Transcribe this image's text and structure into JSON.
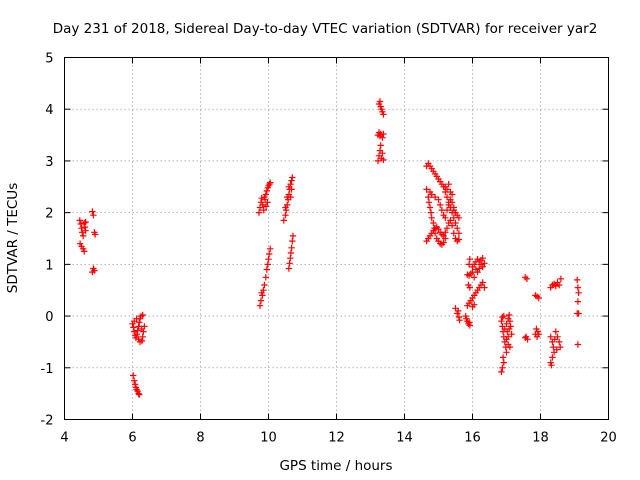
{
  "chart_data": {
    "type": "scatter",
    "title": "Day 231 of 2018, Sidereal Day-to-day VTEC variation (SDTVAR) for receiver yar2",
    "xlabel": "GPS time / hours",
    "ylabel": "SDTVAR / TECUs",
    "xlim": [
      4,
      20
    ],
    "ylim": [
      -2,
      5
    ],
    "xticks": [
      4,
      6,
      8,
      10,
      12,
      14,
      16,
      18,
      20
    ],
    "yticks": [
      -2,
      -1,
      0,
      1,
      2,
      3,
      4,
      5
    ],
    "grid": true,
    "marker": "+",
    "marker_color": "#ff0000",
    "series": [
      {
        "name": "yar2",
        "points": [
          [
            4.45,
            1.85
          ],
          [
            4.48,
            1.78
          ],
          [
            4.5,
            1.7
          ],
          [
            4.52,
            1.62
          ],
          [
            4.55,
            1.55
          ],
          [
            4.58,
            1.8
          ],
          [
            4.6,
            1.72
          ],
          [
            4.62,
            1.65
          ],
          [
            4.46,
            1.4
          ],
          [
            4.5,
            1.35
          ],
          [
            4.55,
            1.3
          ],
          [
            4.58,
            1.25
          ],
          [
            4.62,
            1.82
          ],
          [
            4.82,
            2.02
          ],
          [
            4.85,
            1.95
          ],
          [
            4.88,
            1.62
          ],
          [
            4.9,
            1.58
          ],
          [
            4.85,
            0.92
          ],
          [
            4.88,
            0.88
          ],
          [
            4.82,
            0.85
          ],
          [
            6.02,
            -1.15
          ],
          [
            6.05,
            -1.25
          ],
          [
            6.08,
            -1.32
          ],
          [
            6.1,
            -1.38
          ],
          [
            6.12,
            -1.42
          ],
          [
            6.15,
            -1.45
          ],
          [
            6.18,
            -1.5
          ],
          [
            6.2,
            -1.52
          ],
          [
            6.0,
            -0.15
          ],
          [
            6.03,
            -0.22
          ],
          [
            6.05,
            -0.3
          ],
          [
            6.08,
            -0.38
          ],
          [
            6.1,
            -0.42
          ],
          [
            6.13,
            -0.35
          ],
          [
            6.15,
            -0.28
          ],
          [
            6.18,
            -0.2
          ],
          [
            6.2,
            -0.12
          ],
          [
            6.22,
            -0.05
          ],
          [
            6.25,
            0.0
          ],
          [
            6.28,
            -0.48
          ],
          [
            6.3,
            -0.4
          ],
          [
            6.32,
            -0.3
          ],
          [
            6.35,
            -0.2
          ],
          [
            6.05,
            -0.1
          ],
          [
            6.12,
            -0.05
          ],
          [
            6.18,
            -0.45
          ],
          [
            6.22,
            -0.5
          ],
          [
            6.27,
            -0.25
          ],
          [
            6.3,
            0.02
          ],
          [
            9.75,
            0.2
          ],
          [
            9.78,
            0.3
          ],
          [
            9.82,
            0.4
          ],
          [
            9.85,
            0.5
          ],
          [
            9.88,
            0.6
          ],
          [
            9.92,
            0.75
          ],
          [
            9.95,
            0.9
          ],
          [
            9.98,
            1.0
          ],
          [
            10.0,
            1.1
          ],
          [
            10.02,
            1.2
          ],
          [
            10.05,
            1.3
          ],
          [
            9.8,
            0.45
          ],
          [
            9.72,
            2.0
          ],
          [
            9.75,
            2.1
          ],
          [
            9.78,
            2.2
          ],
          [
            9.8,
            2.28
          ],
          [
            9.83,
            2.15
          ],
          [
            9.86,
            2.05
          ],
          [
            9.9,
            2.25
          ],
          [
            9.92,
            2.35
          ],
          [
            9.95,
            2.42
          ],
          [
            9.98,
            2.48
          ],
          [
            10.0,
            2.52
          ],
          [
            10.03,
            2.55
          ],
          [
            10.05,
            2.58
          ],
          [
            9.88,
            2.3
          ],
          [
            9.93,
            2.12
          ],
          [
            9.97,
            2.2
          ],
          [
            10.45,
            1.85
          ],
          [
            10.5,
            1.95
          ],
          [
            10.52,
            2.05
          ],
          [
            10.55,
            2.15
          ],
          [
            10.58,
            2.25
          ],
          [
            10.6,
            2.35
          ],
          [
            10.62,
            2.45
          ],
          [
            10.65,
            2.55
          ],
          [
            10.68,
            2.62
          ],
          [
            10.7,
            2.68
          ],
          [
            10.5,
            2.1
          ],
          [
            10.55,
            2.3
          ],
          [
            10.6,
            2.5
          ],
          [
            10.65,
            2.3
          ],
          [
            10.68,
            2.45
          ],
          [
            10.6,
            0.92
          ],
          [
            10.62,
            1.02
          ],
          [
            10.64,
            1.12
          ],
          [
            10.66,
            1.22
          ],
          [
            10.68,
            1.32
          ],
          [
            10.7,
            1.45
          ],
          [
            10.72,
            1.55
          ],
          [
            13.22,
            3.0
          ],
          [
            13.25,
            3.1
          ],
          [
            13.28,
            3.2
          ],
          [
            13.3,
            3.3
          ],
          [
            13.32,
            3.05
          ],
          [
            13.35,
            3.15
          ],
          [
            13.38,
            3.02
          ],
          [
            13.22,
            3.5
          ],
          [
            13.25,
            3.55
          ],
          [
            13.28,
            3.48
          ],
          [
            13.3,
            3.52
          ],
          [
            13.35,
            3.45
          ],
          [
            13.38,
            3.52
          ],
          [
            13.25,
            4.1
          ],
          [
            13.28,
            4.15
          ],
          [
            13.3,
            4.05
          ],
          [
            13.32,
            4.0
          ],
          [
            13.35,
            3.95
          ],
          [
            13.38,
            3.9
          ],
          [
            14.65,
            2.9
          ],
          [
            14.7,
            2.95
          ],
          [
            14.75,
            2.9
          ],
          [
            14.8,
            2.85
          ],
          [
            14.85,
            2.8
          ],
          [
            14.9,
            2.75
          ],
          [
            14.95,
            2.7
          ],
          [
            15.0,
            2.65
          ],
          [
            15.05,
            2.6
          ],
          [
            15.1,
            2.55
          ],
          [
            15.15,
            2.5
          ],
          [
            15.2,
            2.4
          ],
          [
            15.25,
            2.3
          ],
          [
            15.3,
            2.2
          ],
          [
            15.35,
            2.1
          ],
          [
            15.4,
            2.0
          ],
          [
            15.45,
            1.9
          ],
          [
            15.5,
            1.8
          ],
          [
            15.55,
            1.7
          ],
          [
            15.6,
            1.6
          ],
          [
            14.65,
            2.45
          ],
          [
            14.7,
            2.3
          ],
          [
            14.72,
            2.2
          ],
          [
            14.75,
            2.1
          ],
          [
            14.78,
            2.0
          ],
          [
            14.8,
            1.9
          ],
          [
            14.85,
            1.8
          ],
          [
            14.88,
            1.7
          ],
          [
            14.9,
            1.6
          ],
          [
            14.95,
            1.5
          ],
          [
            15.0,
            1.45
          ],
          [
            15.05,
            1.4
          ],
          [
            15.1,
            1.38
          ],
          [
            15.15,
            1.42
          ],
          [
            15.2,
            1.5
          ],
          [
            14.65,
            1.45
          ],
          [
            14.7,
            1.5
          ],
          [
            14.75,
            1.55
          ],
          [
            14.8,
            1.6
          ],
          [
            14.85,
            1.65
          ],
          [
            14.9,
            1.7
          ],
          [
            14.95,
            1.72
          ],
          [
            15.0,
            1.68
          ],
          [
            15.05,
            1.62
          ],
          [
            15.1,
            1.58
          ],
          [
            15.15,
            1.55
          ],
          [
            15.2,
            1.62
          ],
          [
            15.25,
            1.7
          ],
          [
            15.3,
            1.8
          ],
          [
            15.35,
            1.85
          ],
          [
            15.4,
            1.75
          ],
          [
            15.45,
            1.6
          ],
          [
            15.5,
            1.5
          ],
          [
            15.55,
            1.45
          ],
          [
            15.6,
            1.48
          ],
          [
            14.75,
            2.4
          ],
          [
            14.8,
            2.35
          ],
          [
            14.9,
            2.3
          ],
          [
            15.0,
            2.25
          ],
          [
            15.05,
            2.15
          ],
          [
            15.1,
            2.05
          ],
          [
            15.15,
            1.95
          ],
          [
            15.2,
            1.9
          ],
          [
            15.25,
            2.05
          ],
          [
            15.3,
            2.15
          ],
          [
            15.35,
            2.25
          ],
          [
            15.4,
            2.35
          ],
          [
            15.45,
            2.1
          ],
          [
            15.5,
            2.0
          ],
          [
            15.55,
            1.95
          ],
          [
            15.6,
            1.9
          ],
          [
            15.2,
            2.5
          ],
          [
            15.25,
            2.45
          ],
          [
            15.3,
            2.55
          ],
          [
            15.35,
            2.4
          ],
          [
            15.4,
            2.2
          ],
          [
            15.45,
            2.05
          ],
          [
            15.5,
            0.15
          ],
          [
            15.55,
            0.05
          ],
          [
            15.58,
            0.1
          ],
          [
            15.6,
            -0.02
          ],
          [
            15.62,
            -0.08
          ],
          [
            15.8,
            0.0
          ],
          [
            15.82,
            -0.05
          ],
          [
            15.85,
            -0.1
          ],
          [
            15.88,
            -0.15
          ],
          [
            15.9,
            -0.12
          ],
          [
            15.92,
            -0.18
          ],
          [
            15.85,
            0.2
          ],
          [
            15.9,
            0.25
          ],
          [
            15.95,
            0.3
          ],
          [
            16.0,
            0.35
          ],
          [
            16.05,
            0.4
          ],
          [
            16.1,
            0.45
          ],
          [
            16.15,
            0.5
          ],
          [
            16.2,
            0.55
          ],
          [
            16.25,
            0.6
          ],
          [
            16.3,
            0.65
          ],
          [
            16.35,
            0.55
          ],
          [
            16.0,
            0.18
          ],
          [
            16.05,
            0.22
          ],
          [
            15.85,
            0.8
          ],
          [
            15.9,
            0.78
          ],
          [
            15.95,
            0.82
          ],
          [
            16.0,
            0.85
          ],
          [
            16.05,
            0.75
          ],
          [
            15.88,
            0.6
          ],
          [
            15.92,
            0.55
          ],
          [
            16.0,
            0.95
          ],
          [
            16.05,
            1.0
          ],
          [
            16.1,
            1.05
          ],
          [
            16.15,
            1.1
          ],
          [
            16.2,
            1.05
          ],
          [
            16.25,
            1.0
          ],
          [
            16.3,
            0.95
          ],
          [
            16.35,
            1.02
          ],
          [
            16.1,
            0.9
          ],
          [
            16.15,
            0.85
          ],
          [
            16.2,
            0.92
          ],
          [
            16.25,
            1.08
          ],
          [
            16.3,
            1.12
          ],
          [
            15.9,
            1.0
          ],
          [
            15.92,
            1.1
          ],
          [
            16.85,
            -0.1
          ],
          [
            16.88,
            -0.2
          ],
          [
            16.9,
            -0.3
          ],
          [
            16.92,
            -0.4
          ],
          [
            16.95,
            -0.5
          ],
          [
            16.98,
            -0.6
          ],
          [
            17.0,
            -0.7
          ],
          [
            16.9,
            -0.8
          ],
          [
            16.92,
            -0.9
          ],
          [
            16.88,
            -1.0
          ],
          [
            16.85,
            -1.08
          ],
          [
            16.95,
            -0.25
          ],
          [
            17.0,
            -0.15
          ],
          [
            17.05,
            -0.05
          ],
          [
            17.08,
            0.02
          ],
          [
            17.1,
            -0.1
          ],
          [
            17.12,
            -0.2
          ],
          [
            17.15,
            -0.35
          ],
          [
            17.0,
            -0.45
          ],
          [
            17.05,
            -0.55
          ],
          [
            17.1,
            -0.6
          ],
          [
            16.88,
            -0.02
          ],
          [
            16.92,
            0.0
          ],
          [
            17.02,
            -0.3
          ],
          [
            17.05,
            -0.4
          ],
          [
            17.08,
            -0.25
          ],
          [
            17.55,
            0.75
          ],
          [
            17.6,
            0.72
          ],
          [
            17.58,
            -0.4
          ],
          [
            17.62,
            -0.45
          ],
          [
            17.55,
            -0.42
          ],
          [
            17.85,
            0.4
          ],
          [
            17.9,
            0.38
          ],
          [
            17.95,
            0.35
          ],
          [
            17.88,
            -0.25
          ],
          [
            17.92,
            -0.3
          ],
          [
            17.95,
            -0.35
          ],
          [
            17.9,
            -0.4
          ],
          [
            17.85,
            -0.35
          ],
          [
            18.3,
            0.55
          ],
          [
            18.35,
            0.6
          ],
          [
            18.4,
            0.62
          ],
          [
            18.45,
            0.58
          ],
          [
            18.5,
            0.65
          ],
          [
            18.55,
            0.6
          ],
          [
            18.6,
            0.72
          ],
          [
            18.3,
            -0.4
          ],
          [
            18.35,
            -0.5
          ],
          [
            18.38,
            -0.6
          ],
          [
            18.4,
            -0.7
          ],
          [
            18.35,
            -0.8
          ],
          [
            18.3,
            -0.9
          ],
          [
            18.32,
            -0.95
          ],
          [
            18.45,
            -0.3
          ],
          [
            18.5,
            -0.4
          ],
          [
            18.55,
            -0.5
          ],
          [
            18.58,
            -0.6
          ],
          [
            18.48,
            -0.65
          ],
          [
            18.42,
            -0.45
          ],
          [
            19.08,
            0.7
          ],
          [
            19.1,
            0.55
          ],
          [
            19.12,
            0.45
          ],
          [
            19.1,
            0.28
          ],
          [
            19.08,
            0.05
          ],
          [
            19.12,
            0.05
          ],
          [
            19.1,
            -0.55
          ]
        ]
      }
    ]
  }
}
